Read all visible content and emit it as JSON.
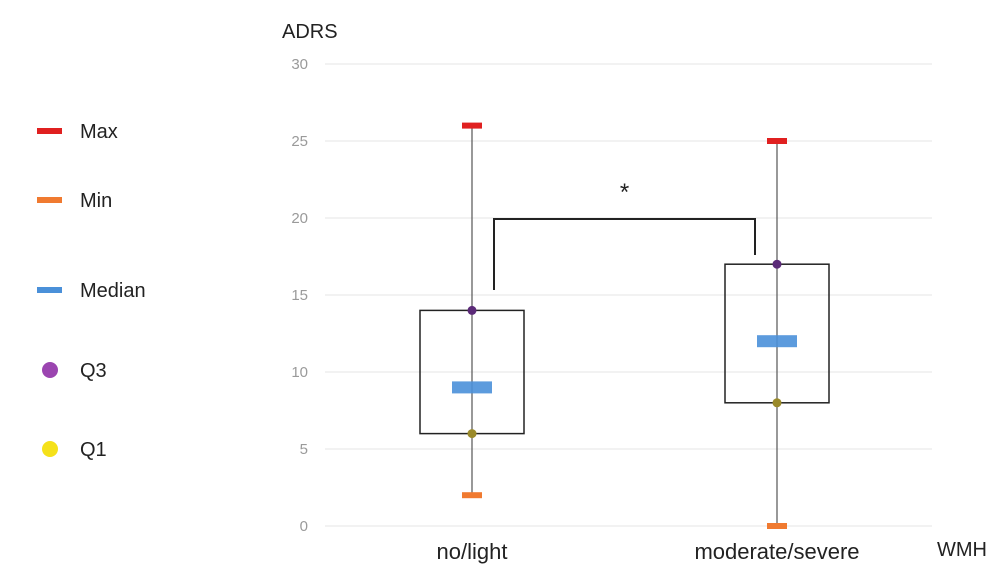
{
  "chart_data": {
    "type": "box",
    "ylabel": "ADRS",
    "xlabel": "WMH",
    "ylim": [
      0,
      30
    ],
    "yticks": [
      0,
      5,
      10,
      15,
      20,
      25,
      30
    ],
    "grid": true,
    "legend_position": "left",
    "categories": [
      "no/light",
      "moderate/severe"
    ],
    "series": [
      {
        "name": "Max",
        "values": [
          26,
          25
        ],
        "color": "#e02020",
        "marker": "dash"
      },
      {
        "name": "Min",
        "values": [
          2,
          0
        ],
        "color": "#f07a30",
        "marker": "dash"
      },
      {
        "name": "Median",
        "values": [
          9,
          12
        ],
        "color": "#4a90d9",
        "marker": "dash"
      },
      {
        "name": "Q3",
        "values": [
          14,
          17
        ],
        "color": "#9b45b0",
        "marker": "circle"
      },
      {
        "name": "Q1",
        "values": [
          6,
          8
        ],
        "color": "#f5e11a",
        "marker": "circle"
      }
    ],
    "annotations": [
      {
        "text": "*",
        "type": "significance-bracket",
        "from_category": 0,
        "to_category": 1
      }
    ]
  }
}
